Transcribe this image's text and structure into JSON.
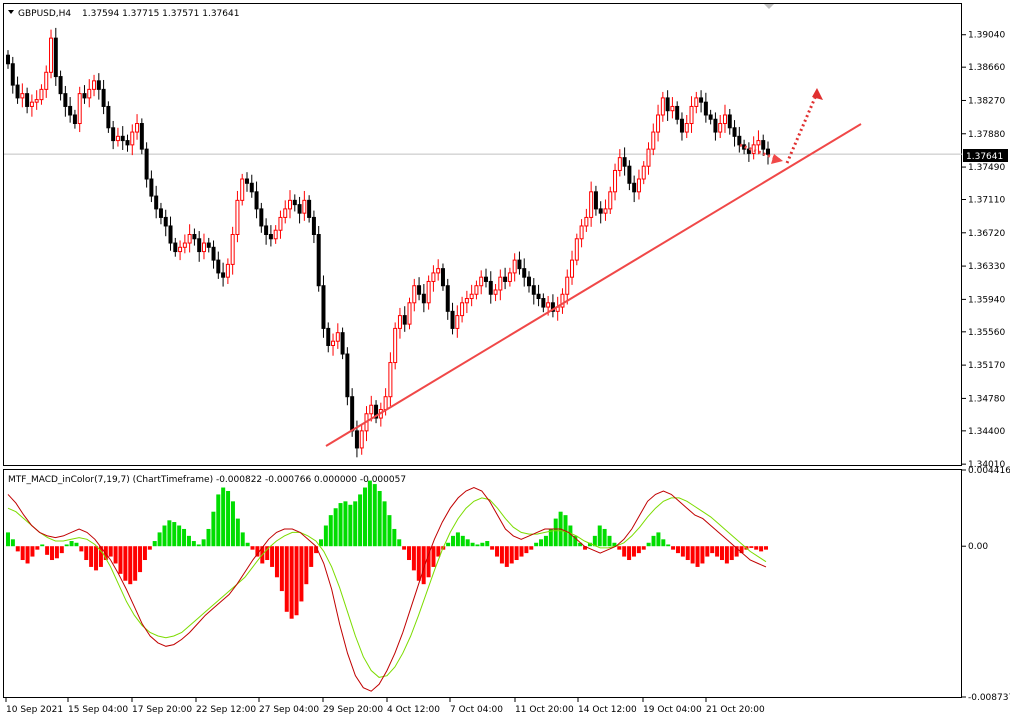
{
  "header": {
    "symbol": "GBPUSD,H4",
    "ohlc": "1.37594 1.37715 1.37571 1.37641"
  },
  "macd_header": {
    "label": "MTF_MACD_inColor(7,19,7) (ChartTimeframe) -0.000822 -0.000766 0.000000 -0.000057"
  },
  "colors": {
    "bull_candle": "#ff0000",
    "bear_candle": "#000000",
    "trendline": "#f04848",
    "current_price_line": "#c0c0c0",
    "macd_hist_pos": "#00dd00",
    "macd_hist_neg": "#ff0000",
    "macd_line": "#c00000",
    "signal_line": "#7cdc00",
    "grid_border": "#000000"
  },
  "chart_data": [
    {
      "type": "candlestick",
      "title": "GBPUSD,H4",
      "price_axis_ticks": [
        "1.39040",
        "1.38660",
        "1.38270",
        "1.37880",
        "1.37490",
        "1.37110",
        "1.36720",
        "1.36330",
        "1.35940",
        "1.35560",
        "1.35170",
        "1.34780",
        "1.34400",
        "1.34010"
      ],
      "ylim": [
        1.34,
        1.394
      ],
      "current_price": "1.37641",
      "x_tick_labels": [
        "10 Sep 2021",
        "15 Sep 04:00",
        "17 Sep 20:00",
        "22 Sep 12:00",
        "27 Sep 04:00",
        "29 Sep 20:00",
        "4 Oct 12:00",
        "7 Oct 04:00",
        "11 Oct 20:00",
        "14 Oct 12:00",
        "19 Oct 04:00",
        "21 Oct 20:00"
      ],
      "closes": [
        1.387,
        1.3845,
        1.383,
        1.3835,
        1.382,
        1.3825,
        1.3828,
        1.384,
        1.386,
        1.39,
        1.3855,
        1.3835,
        1.382,
        1.381,
        1.38,
        1.3835,
        1.383,
        1.384,
        1.385,
        1.384,
        1.382,
        1.3795,
        1.378,
        1.3785,
        1.378,
        1.3775,
        1.379,
        1.38,
        1.377,
        1.3735,
        1.3715,
        1.37,
        1.369,
        1.368,
        1.366,
        1.365,
        1.3655,
        1.366,
        1.367,
        1.3665,
        1.365,
        1.366,
        1.3655,
        1.364,
        1.3625,
        1.362,
        1.3635,
        1.367,
        1.371,
        1.3735,
        1.373,
        1.372,
        1.37,
        1.368,
        1.367,
        1.3665,
        1.3675,
        1.369,
        1.37,
        1.371,
        1.3705,
        1.3695,
        1.371,
        1.369,
        1.367,
        1.361,
        1.356,
        1.354,
        1.3545,
        1.3555,
        1.353,
        1.348,
        1.344,
        1.342,
        1.344,
        1.346,
        1.347,
        1.3455,
        1.3465,
        1.348,
        1.352,
        1.356,
        1.3575,
        1.3565,
        1.359,
        1.361,
        1.36,
        1.359,
        1.3615,
        1.3625,
        1.363,
        1.361,
        1.358,
        1.356,
        1.3575,
        1.359,
        1.3595,
        1.36,
        1.361,
        1.362,
        1.3615,
        1.36,
        1.3605,
        1.362,
        1.3615,
        1.3625,
        1.364,
        1.363,
        1.362,
        1.361,
        1.36,
        1.3595,
        1.3585,
        1.359,
        1.358,
        1.3585,
        1.36,
        1.362,
        1.364,
        1.3665,
        1.368,
        1.369,
        1.372,
        1.37,
        1.3695,
        1.37,
        1.372,
        1.3745,
        1.376,
        1.375,
        1.373,
        1.372,
        1.3735,
        1.375,
        1.377,
        1.379,
        1.381,
        1.383,
        1.3815,
        1.382,
        1.3805,
        1.379,
        1.38,
        1.382,
        1.383,
        1.3825,
        1.381,
        1.3805,
        1.379,
        1.38,
        1.381,
        1.3795,
        1.3785,
        1.3775,
        1.377,
        1.3765,
        1.3775,
        1.378,
        1.377,
        1.3764
      ]
    },
    {
      "type": "histogram",
      "title": "MTF_MACD_inColor(7,19,7) (ChartTimeframe)",
      "axis_ticks": [
        "0.004416",
        "0.00",
        "-0.008737"
      ],
      "ylim": [
        -0.008737,
        0.004416
      ],
      "histogram": [
        0.0008,
        0.0004,
        -0.0003,
        -0.0008,
        -0.001,
        -0.0006,
        -0.0002,
        0.0001,
        -0.0005,
        -0.0008,
        -0.0007,
        -0.0004,
        0.0001,
        0.0003,
        0.0002,
        -0.0003,
        -0.0008,
        -0.0012,
        -0.0014,
        -0.0012,
        -0.0008,
        -0.0006,
        -0.001,
        -0.0016,
        -0.002,
        -0.0022,
        -0.002,
        -0.0015,
        -0.0008,
        -0.0002,
        0.0003,
        0.0008,
        0.0012,
        0.0015,
        0.0014,
        0.0012,
        0.001,
        0.0006,
        0.0003,
        0.0001,
        0.0004,
        0.001,
        0.002,
        0.003,
        0.0034,
        0.0032,
        0.0026,
        0.0016,
        0.0008,
        0.0002,
        -0.0002,
        -0.0006,
        -0.001,
        -0.0008,
        -0.0012,
        -0.0018,
        -0.0026,
        -0.0038,
        -0.0042,
        -0.004,
        -0.0032,
        -0.0022,
        -0.0012,
        -0.0004,
        0.0004,
        0.0012,
        0.0018,
        0.0022,
        0.0025,
        0.0026,
        0.0024,
        0.0026,
        0.003,
        0.0034,
        0.0038,
        0.0036,
        0.0032,
        0.0026,
        0.0018,
        0.001,
        0.0004,
        -0.0002,
        -0.0008,
        -0.0014,
        -0.002,
        -0.0022,
        -0.0018,
        -0.0012,
        -0.0006,
        -0.0002,
        0.0002,
        0.0006,
        0.0008,
        0.0006,
        0.0004,
        0.0002,
        0.0001,
        0.0002,
        0.0003,
        -0.0002,
        -0.0006,
        -0.001,
        -0.0012,
        -0.001,
        -0.0008,
        -0.0006,
        -0.0004,
        -0.0002,
        0.0002,
        0.0004,
        0.0006,
        0.001,
        0.0016,
        0.002,
        0.0018,
        0.0012,
        0.0006,
        0.0002,
        -0.0002,
        0.0002,
        0.0006,
        0.0012,
        0.001,
        0.0006,
        0.0002,
        -0.0002,
        -0.0006,
        -0.0008,
        -0.0006,
        -0.0004,
        -0.0002,
        0.0002,
        0.0006,
        0.0008,
        0.0004,
        0.0001,
        -0.0002,
        -0.0004,
        -0.0006,
        -0.0008,
        -0.001,
        -0.0012,
        -0.001,
        -0.0006,
        -0.0004,
        -0.0006,
        -0.0008,
        -0.001,
        -0.0008,
        -0.0006,
        -0.0004,
        -0.0002,
        -0.0001,
        -0.0002,
        -0.0003,
        -0.0002
      ],
      "macd_line": [
        0.003,
        0.0025,
        0.0018,
        0.0012,
        0.0008,
        0.0006,
        0.0005,
        0.0006,
        0.0008,
        0.001,
        0.0008,
        0.0004,
        -0.0002,
        -0.0008,
        -0.0016,
        -0.0025,
        -0.0035,
        -0.0045,
        -0.0052,
        -0.0056,
        -0.0058,
        -0.0057,
        -0.0054,
        -0.005,
        -0.0045,
        -0.004,
        -0.0036,
        -0.0032,
        -0.0028,
        -0.0022,
        -0.0015,
        -0.0008,
        -0.0002,
        0.0004,
        0.0008,
        0.001,
        0.001,
        0.0008,
        0.0004,
        0.0,
        -0.001,
        -0.0025,
        -0.0045,
        -0.0062,
        -0.0075,
        -0.0082,
        -0.0084,
        -0.008,
        -0.0072,
        -0.0062,
        -0.005,
        -0.0036,
        -0.0022,
        -0.0008,
        0.0004,
        0.0014,
        0.0022,
        0.0028,
        0.0032,
        0.0034,
        0.0032,
        0.0026,
        0.0018,
        0.001,
        0.0006,
        0.0004,
        0.0006,
        0.0008,
        0.001,
        0.001,
        0.001,
        0.0008,
        0.0004,
        0.0,
        -0.0002,
        -0.0004,
        -0.0002,
        0.0,
        0.0004,
        0.001,
        0.0018,
        0.0026,
        0.003,
        0.0032,
        0.003,
        0.0026,
        0.0022,
        0.0018,
        0.0016,
        0.0012,
        0.0008,
        0.0004,
        0.0,
        -0.0004,
        -0.0008,
        -0.001,
        -0.0012
      ],
      "signal_line": [
        0.0022,
        0.002,
        0.0016,
        0.0012,
        0.0008,
        0.0005,
        0.0003,
        0.0003,
        0.0004,
        0.0005,
        0.0004,
        0.0001,
        -0.0004,
        -0.0012,
        -0.0022,
        -0.0032,
        -0.004,
        -0.0046,
        -0.005,
        -0.0052,
        -0.0053,
        -0.0052,
        -0.005,
        -0.0046,
        -0.0042,
        -0.0038,
        -0.0034,
        -0.003,
        -0.0026,
        -0.0022,
        -0.0018,
        -0.0012,
        -0.0006,
        -0.0001,
        0.0003,
        0.0006,
        0.0008,
        0.0008,
        0.0006,
        0.0003,
        -0.0003,
        -0.0012,
        -0.0024,
        -0.0038,
        -0.0052,
        -0.0064,
        -0.0072,
        -0.0076,
        -0.0075,
        -0.007,
        -0.0062,
        -0.0052,
        -0.004,
        -0.0027,
        -0.0014,
        -0.0002,
        0.0008,
        0.0016,
        0.0022,
        0.0026,
        0.0028,
        0.0027,
        0.0022,
        0.0016,
        0.0011,
        0.0008,
        0.0007,
        0.0007,
        0.0008,
        0.0009,
        0.0009,
        0.0008,
        0.0006,
        0.0003,
        0.0001,
        -0.0001,
        -0.0001,
        0.0,
        0.0002,
        0.0006,
        0.0011,
        0.0017,
        0.0022,
        0.0026,
        0.0028,
        0.0028,
        0.0026,
        0.0023,
        0.002,
        0.0017,
        0.0013,
        0.0009,
        0.0005,
        0.0001,
        -0.0003,
        -0.0006,
        -0.0009
      ]
    }
  ]
}
